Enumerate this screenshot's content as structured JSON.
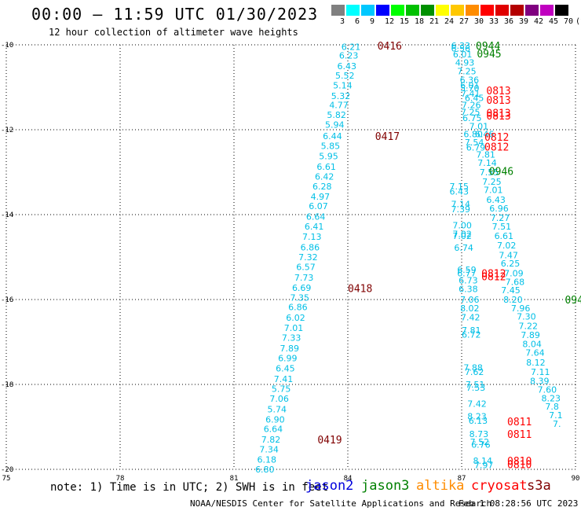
{
  "header": {
    "title": "00:00 – 11:59 UTC 01/30/2023",
    "subtitle": "12 hour collection of altimeter wave heights"
  },
  "colorbar": {
    "labels": [
      "3",
      "6",
      "9",
      "12",
      "15",
      "18",
      "21",
      "24",
      "27",
      "30",
      "33",
      "36",
      "39",
      "42",
      "45",
      "70",
      "(ft)"
    ],
    "colors": [
      "#808080",
      "#00ffff",
      "#00c8ff",
      "#0000ff",
      "#00ff00",
      "#00c000",
      "#009000",
      "#ffff00",
      "#ffc800",
      "#ff8c00",
      "#ff0000",
      "#e00000",
      "#b40000",
      "#800080",
      "#c000c0",
      "#000000"
    ]
  },
  "chart_data": {
    "type": "scatter",
    "x_ticks": [
      "75",
      "78",
      "81",
      "84",
      "87",
      "90"
    ],
    "y_ticks": [
      "-10",
      "-12",
      "-14",
      "-16",
      "-18",
      "-20"
    ],
    "xlim": [
      75,
      90
    ],
    "ylim": [
      -20,
      -10
    ],
    "grid": true,
    "point_color": "#00bfe6",
    "time_colors": {
      "jason3": "#008000",
      "cryosat": "#ff0000",
      "s3a": "#800000"
    },
    "swh_points": [
      {
        "x": 83.83,
        "y": -10.05,
        "label": "6.21"
      },
      {
        "x": 83.77,
        "y": -10.25,
        "label": "6.23"
      },
      {
        "x": 83.72,
        "y": -10.5,
        "label": "6.43"
      },
      {
        "x": 83.67,
        "y": -10.72,
        "label": "5.52"
      },
      {
        "x": 83.61,
        "y": -10.95,
        "label": "5.14"
      },
      {
        "x": 83.56,
        "y": -11.2,
        "label": "5.32"
      },
      {
        "x": 83.51,
        "y": -11.42,
        "label": "4.77"
      },
      {
        "x": 83.45,
        "y": -11.65,
        "label": "5.82"
      },
      {
        "x": 83.4,
        "y": -11.88,
        "label": "5.94"
      },
      {
        "x": 83.34,
        "y": -12.15,
        "label": "6.44"
      },
      {
        "x": 83.29,
        "y": -12.38,
        "label": "5.85"
      },
      {
        "x": 83.24,
        "y": -12.62,
        "label": "5.95"
      },
      {
        "x": 83.18,
        "y": -12.87,
        "label": "6.61"
      },
      {
        "x": 83.13,
        "y": -13.1,
        "label": "6.42"
      },
      {
        "x": 83.07,
        "y": -13.33,
        "label": "6.28"
      },
      {
        "x": 83.02,
        "y": -13.57,
        "label": "4.97"
      },
      {
        "x": 82.97,
        "y": -13.8,
        "label": "6.07"
      },
      {
        "x": 82.9,
        "y": -14.05,
        "label": "6.64"
      },
      {
        "x": 82.86,
        "y": -14.28,
        "label": "6.41"
      },
      {
        "x": 82.8,
        "y": -14.52,
        "label": "7.13"
      },
      {
        "x": 82.75,
        "y": -14.77,
        "label": "6.86"
      },
      {
        "x": 82.7,
        "y": -15.0,
        "label": "7.32"
      },
      {
        "x": 82.64,
        "y": -15.23,
        "label": "6.57"
      },
      {
        "x": 82.59,
        "y": -15.48,
        "label": "7.73"
      },
      {
        "x": 82.53,
        "y": -15.72,
        "label": "6.69"
      },
      {
        "x": 82.48,
        "y": -15.95,
        "label": "7.35"
      },
      {
        "x": 82.43,
        "y": -16.18,
        "label": "6.86"
      },
      {
        "x": 82.37,
        "y": -16.43,
        "label": "6.02"
      },
      {
        "x": 82.32,
        "y": -16.67,
        "label": "7.01"
      },
      {
        "x": 82.26,
        "y": -16.9,
        "label": "7.33"
      },
      {
        "x": 82.21,
        "y": -17.15,
        "label": "7.89"
      },
      {
        "x": 82.16,
        "y": -17.38,
        "label": "6.99"
      },
      {
        "x": 82.1,
        "y": -17.62,
        "label": "6.45"
      },
      {
        "x": 82.05,
        "y": -17.87,
        "label": "7.41"
      },
      {
        "x": 81.99,
        "y": -18.1,
        "label": "5.75"
      },
      {
        "x": 81.94,
        "y": -18.33,
        "label": "7.06"
      },
      {
        "x": 81.88,
        "y": -18.58,
        "label": "5.74"
      },
      {
        "x": 81.83,
        "y": -18.82,
        "label": "6.90"
      },
      {
        "x": 81.78,
        "y": -19.05,
        "label": "6.64"
      },
      {
        "x": 81.72,
        "y": -19.3,
        "label": "7.82"
      },
      {
        "x": 81.67,
        "y": -19.53,
        "label": "7.34"
      },
      {
        "x": 81.61,
        "y": -19.77,
        "label": "6.18"
      },
      {
        "x": 81.56,
        "y": -20.0,
        "label": "6.80"
      },
      {
        "x": 86.72,
        "y": -10.02,
        "label": "6.33"
      },
      {
        "x": 86.72,
        "y": -10.08,
        "label": "6.56"
      },
      {
        "x": 86.77,
        "y": -10.22,
        "label": "6.01"
      },
      {
        "x": 86.83,
        "y": -10.42,
        "label": "4.93"
      },
      {
        "x": 86.88,
        "y": -10.62,
        "label": "7.25"
      },
      {
        "x": 86.95,
        "y": -10.82,
        "label": "6.36"
      },
      {
        "x": 86.96,
        "y": -10.95,
        "label": "6.01"
      },
      {
        "x": 86.96,
        "y": -11.02,
        "label": "5.70"
      },
      {
        "x": 86.98,
        "y": -11.15,
        "label": "7.41"
      },
      {
        "x": 87.08,
        "y": -11.25,
        "label": "6.45"
      },
      {
        "x": 87.0,
        "y": -11.42,
        "label": "7.26"
      },
      {
        "x": 86.98,
        "y": -11.58,
        "label": "7.25"
      },
      {
        "x": 87.02,
        "y": -11.72,
        "label": "6.75"
      },
      {
        "x": 87.2,
        "y": -11.92,
        "label": "7.01"
      },
      {
        "x": 87.05,
        "y": -12.1,
        "label": "6.80"
      },
      {
        "x": 87.35,
        "y": -12.1,
        "label": "6.46"
      },
      {
        "x": 87.08,
        "y": -12.3,
        "label": "7.54"
      },
      {
        "x": 87.12,
        "y": -12.42,
        "label": "6.79"
      },
      {
        "x": 87.38,
        "y": -12.58,
        "label": "7.81"
      },
      {
        "x": 87.42,
        "y": -12.78,
        "label": "7.14"
      },
      {
        "x": 87.47,
        "y": -13.0,
        "label": "7.55"
      },
      {
        "x": 87.54,
        "y": -13.22,
        "label": "7.25"
      },
      {
        "x": 87.58,
        "y": -13.42,
        "label": "7.01"
      },
      {
        "x": 87.65,
        "y": -13.65,
        "label": "6.43"
      },
      {
        "x": 87.73,
        "y": -13.85,
        "label": "6.96"
      },
      {
        "x": 87.76,
        "y": -14.07,
        "label": "7.27"
      },
      {
        "x": 87.8,
        "y": -14.28,
        "label": "7.51"
      },
      {
        "x": 87.86,
        "y": -14.5,
        "label": "6.61"
      },
      {
        "x": 87.93,
        "y": -14.72,
        "label": "7.02"
      },
      {
        "x": 87.98,
        "y": -14.95,
        "label": "7.47"
      },
      {
        "x": 88.03,
        "y": -15.15,
        "label": "6.25"
      },
      {
        "x": 88.12,
        "y": -15.38,
        "label": "7.09"
      },
      {
        "x": 88.15,
        "y": -15.58,
        "label": "7.68"
      },
      {
        "x": 88.04,
        "y": -15.78,
        "label": "7.45"
      },
      {
        "x": 88.1,
        "y": -16.0,
        "label": "8.20"
      },
      {
        "x": 88.3,
        "y": -16.2,
        "label": "7.96"
      },
      {
        "x": 88.45,
        "y": -16.4,
        "label": "7.30"
      },
      {
        "x": 88.5,
        "y": -16.62,
        "label": "7.22"
      },
      {
        "x": 88.56,
        "y": -16.83,
        "label": "7.89"
      },
      {
        "x": 88.6,
        "y": -17.05,
        "label": "8.04"
      },
      {
        "x": 88.68,
        "y": -17.25,
        "label": "7.64"
      },
      {
        "x": 88.7,
        "y": -17.48,
        "label": "8.12"
      },
      {
        "x": 88.82,
        "y": -17.7,
        "label": "7.11"
      },
      {
        "x": 88.8,
        "y": -17.92,
        "label": "8.39"
      },
      {
        "x": 89.0,
        "y": -18.12,
        "label": "7.60"
      },
      {
        "x": 89.1,
        "y": -18.32,
        "label": "8.23"
      },
      {
        "x": 89.2,
        "y": -18.52,
        "label": "7.8"
      },
      {
        "x": 89.3,
        "y": -18.72,
        "label": "7.1"
      },
      {
        "x": 89.4,
        "y": -18.93,
        "label": "7."
      },
      {
        "x": 86.68,
        "y": -13.33,
        "label": "7.15"
      },
      {
        "x": 86.68,
        "y": -13.45,
        "label": "6.43"
      },
      {
        "x": 86.72,
        "y": -13.75,
        "label": "7.14"
      },
      {
        "x": 86.72,
        "y": -13.87,
        "label": "7.39"
      },
      {
        "x": 86.76,
        "y": -14.25,
        "label": "7.00"
      },
      {
        "x": 86.76,
        "y": -14.45,
        "label": "7.02"
      },
      {
        "x": 86.76,
        "y": -14.5,
        "label": "7.02"
      },
      {
        "x": 86.8,
        "y": -14.78,
        "label": "6.74"
      },
      {
        "x": 86.88,
        "y": -15.3,
        "label": "6.59"
      },
      {
        "x": 86.88,
        "y": -15.38,
        "label": "6.77"
      },
      {
        "x": 86.92,
        "y": -15.55,
        "label": "6.73"
      },
      {
        "x": 86.92,
        "y": -15.75,
        "label": "6.38"
      },
      {
        "x": 86.96,
        "y": -16.0,
        "label": "7.06"
      },
      {
        "x": 86.96,
        "y": -16.2,
        "label": "8.02"
      },
      {
        "x": 86.98,
        "y": -16.42,
        "label": "7.42"
      },
      {
        "x": 87.0,
        "y": -16.72,
        "label": "7.81"
      },
      {
        "x": 87.0,
        "y": -16.82,
        "label": "6.72"
      },
      {
        "x": 87.05,
        "y": -17.6,
        "label": "7.88"
      },
      {
        "x": 87.08,
        "y": -17.7,
        "label": "7.62"
      },
      {
        "x": 87.1,
        "y": -18.0,
        "label": "7.51"
      },
      {
        "x": 87.12,
        "y": -18.07,
        "label": "7.53"
      },
      {
        "x": 87.15,
        "y": -18.45,
        "label": "7.42"
      },
      {
        "x": 87.15,
        "y": -18.75,
        "label": "8.23"
      },
      {
        "x": 87.18,
        "y": -18.85,
        "label": "6.13"
      },
      {
        "x": 87.2,
        "y": -19.17,
        "label": "8.73"
      },
      {
        "x": 87.22,
        "y": -19.35,
        "label": "7.52"
      },
      {
        "x": 87.25,
        "y": -19.42,
        "label": "6.76"
      },
      {
        "x": 87.3,
        "y": -19.8,
        "label": "8.14"
      },
      {
        "x": 87.33,
        "y": -19.9,
        "label": "7.97"
      }
    ],
    "time_labels": [
      {
        "x": 84.78,
        "y": -10.02,
        "label": "0416",
        "sat": "s3a"
      },
      {
        "x": 84.72,
        "y": -12.15,
        "label": "0417",
        "sat": "s3a"
      },
      {
        "x": 84.0,
        "y": -15.73,
        "label": "0418",
        "sat": "s3a"
      },
      {
        "x": 83.2,
        "y": -19.3,
        "label": "0419",
        "sat": "s3a"
      },
      {
        "x": 87.37,
        "y": -10.02,
        "label": "0944",
        "sat": "jason3"
      },
      {
        "x": 87.4,
        "y": -10.2,
        "label": "0945",
        "sat": "jason3"
      },
      {
        "x": 87.72,
        "y": -12.97,
        "label": "0946",
        "sat": "jason3"
      },
      {
        "x": 89.72,
        "y": -16.0,
        "label": "094",
        "sat": "jason3"
      },
      {
        "x": 87.65,
        "y": -11.07,
        "label": "0813",
        "sat": "cryosat"
      },
      {
        "x": 87.65,
        "y": -11.3,
        "label": "0813",
        "sat": "cryosat"
      },
      {
        "x": 87.65,
        "y": -11.6,
        "label": "0813",
        "sat": "cryosat"
      },
      {
        "x": 87.65,
        "y": -11.67,
        "label": "0813",
        "sat": "cryosat"
      },
      {
        "x": 87.6,
        "y": -12.17,
        "label": "0812",
        "sat": "cryosat"
      },
      {
        "x": 87.6,
        "y": -12.4,
        "label": "0812",
        "sat": "cryosat"
      },
      {
        "x": 87.52,
        "y": -15.38,
        "label": "0812",
        "sat": "cryosat"
      },
      {
        "x": 87.52,
        "y": -15.45,
        "label": "0812",
        "sat": "cryosat"
      },
      {
        "x": 88.2,
        "y": -18.87,
        "label": "0811",
        "sat": "cryosat"
      },
      {
        "x": 88.2,
        "y": -19.17,
        "label": "0811",
        "sat": "cryosat"
      },
      {
        "x": 88.2,
        "y": -19.8,
        "label": "0810",
        "sat": "cryosat"
      },
      {
        "x": 88.2,
        "y": -19.88,
        "label": "0810",
        "sat": "cryosat"
      }
    ]
  },
  "footer": {
    "note": "note: 1) Time is in UTC; 2) SWH is in feet",
    "satellites": [
      {
        "name": "jason2",
        "color": "#0000dd"
      },
      {
        "name": "jason3",
        "color": "#008000"
      },
      {
        "name": "altika",
        "color": "#ff8c00"
      },
      {
        "name": "cryosat",
        "color": "#ff0000"
      },
      {
        "name": "s3a",
        "color": "#800000"
      }
    ],
    "credit": "NOAA/NESDIS Center for Satellite Applications and Research",
    "timestamp": "Feb  1 08:28:56 UTC 2023"
  }
}
